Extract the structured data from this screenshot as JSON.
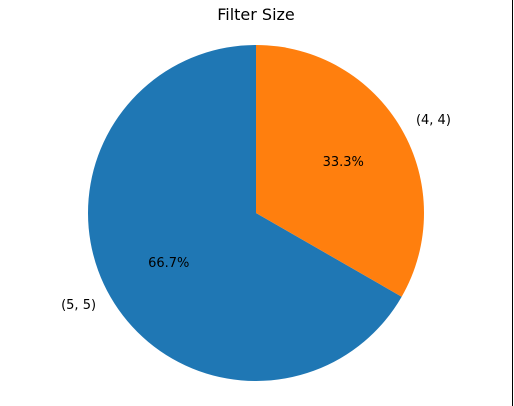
{
  "chart_data": {
    "type": "pie",
    "title": "Filter Size",
    "labels": [
      "(5, 5)",
      "(4, 4)"
    ],
    "values": [
      66.7,
      33.3
    ],
    "autopct": [
      "66.7%",
      "33.3%"
    ],
    "colors": [
      "#1f77b4",
      "#ff7f0e"
    ],
    "start_angle_deg": 90,
    "direction": "counterclockwise"
  }
}
